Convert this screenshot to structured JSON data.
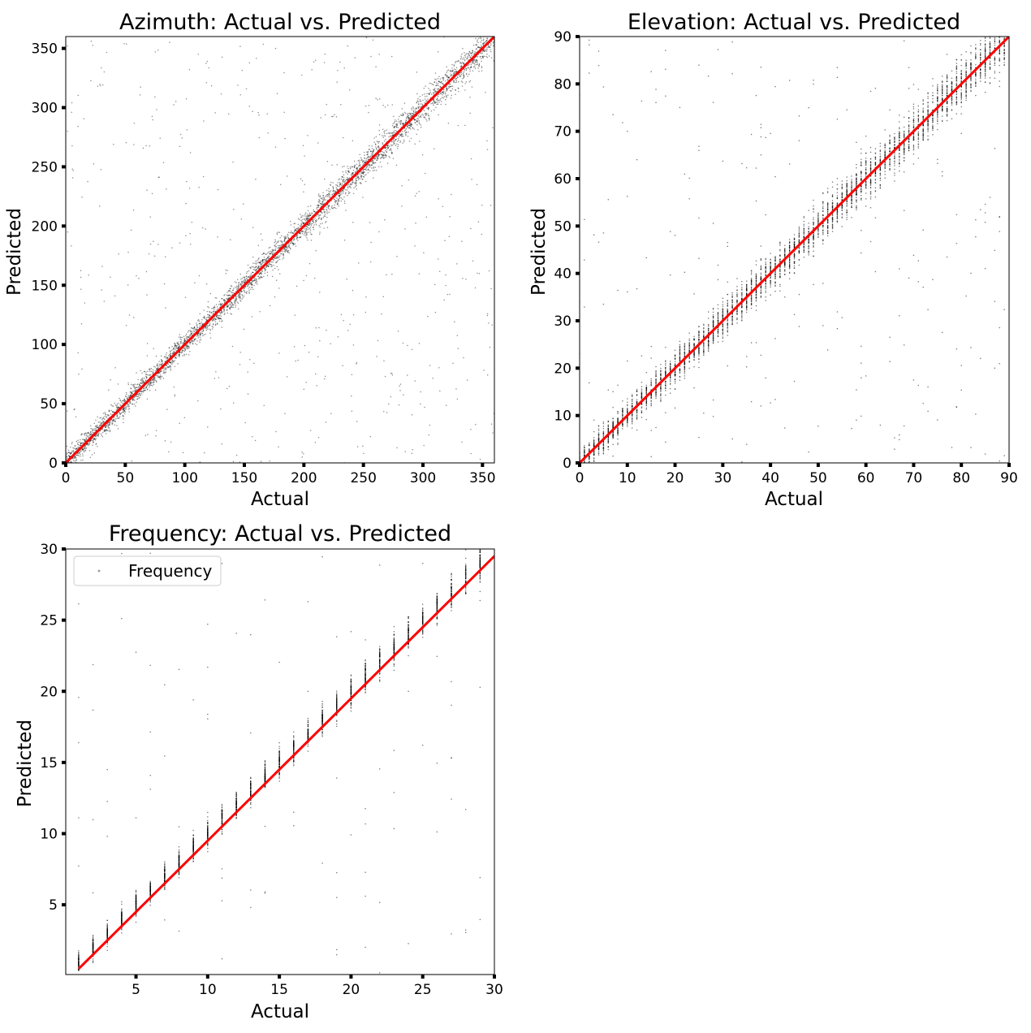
{
  "chart_data": [
    {
      "type": "scatter",
      "title": "Azimuth: Actual vs. Predicted",
      "xlabel": "Actual",
      "ylabel": "Predicted",
      "xlim": [
        0,
        360
      ],
      "ylim": [
        0,
        360
      ],
      "xticks": [
        "0",
        "50",
        "100",
        "150",
        "200",
        "250",
        "300",
        "350"
      ],
      "yticks": [
        "0",
        "50",
        "100",
        "150",
        "200",
        "250",
        "300",
        "350"
      ],
      "xtick_values": [
        0,
        50,
        100,
        150,
        200,
        250,
        300,
        350
      ],
      "ytick_values": [
        0,
        50,
        100,
        150,
        200,
        250,
        300,
        350
      ],
      "reference_line": {
        "x": [
          0,
          360
        ],
        "y": [
          0,
          360
        ],
        "color": "#ff0000"
      },
      "point_color": "#000000",
      "scatter_pattern": {
        "kind": "continuous",
        "range": [
          0,
          360
        ],
        "core_spread": 7,
        "outlier_fraction": 0.12,
        "n_points": 4500
      },
      "grid": false,
      "legend": null
    },
    {
      "type": "scatter",
      "title": "Elevation: Actual vs. Predicted",
      "xlabel": "Actual",
      "ylabel": "Predicted",
      "xlim": [
        0,
        90
      ],
      "ylim": [
        0,
        90
      ],
      "xticks": [
        "0",
        "10",
        "20",
        "30",
        "40",
        "50",
        "60",
        "70",
        "80",
        "90"
      ],
      "yticks": [
        "0",
        "10",
        "20",
        "30",
        "40",
        "50",
        "60",
        "70",
        "80",
        "90"
      ],
      "xtick_values": [
        0,
        10,
        20,
        30,
        40,
        50,
        60,
        70,
        80,
        90
      ],
      "ytick_values": [
        0,
        10,
        20,
        30,
        40,
        50,
        60,
        70,
        80,
        90
      ],
      "reference_line": {
        "x": [
          0,
          90
        ],
        "y": [
          0,
          90
        ],
        "color": "#ff0000"
      },
      "point_color": "#000000",
      "scatter_pattern": {
        "kind": "discrete",
        "x_values_from": 0,
        "x_values_to": 89,
        "x_values_step": 1,
        "core_spread": 2.5,
        "outlier_fraction": 0.06,
        "n_points": 4500
      },
      "grid": false,
      "legend": null
    },
    {
      "type": "scatter",
      "title": "Frequency: Actual vs. Predicted",
      "xlabel": "Actual",
      "ylabel": "Predicted",
      "xlim": [
        0.1,
        30
      ],
      "ylim": [
        0.1,
        30
      ],
      "xticks": [
        "5",
        "10",
        "15",
        "20",
        "25",
        "30"
      ],
      "yticks": [
        "5",
        "10",
        "15",
        "20",
        "25",
        "30"
      ],
      "xtick_values": [
        5,
        10,
        15,
        20,
        25,
        30
      ],
      "ytick_values": [
        5,
        10,
        15,
        20,
        25,
        30
      ],
      "reference_line": {
        "x": [
          1,
          30
        ],
        "y": [
          0.5,
          29.5
        ],
        "color": "#ff0000"
      },
      "point_color": "#000000",
      "scatter_pattern": {
        "kind": "discrete",
        "x_values_from": 1,
        "x_values_to": 29,
        "x_values_step": 1,
        "core_spread": 0.6,
        "outlier_fraction": 0.04,
        "n_points": 2600
      },
      "grid": false,
      "legend": {
        "position": "top-left",
        "entries": [
          "Frequency"
        ]
      }
    }
  ]
}
